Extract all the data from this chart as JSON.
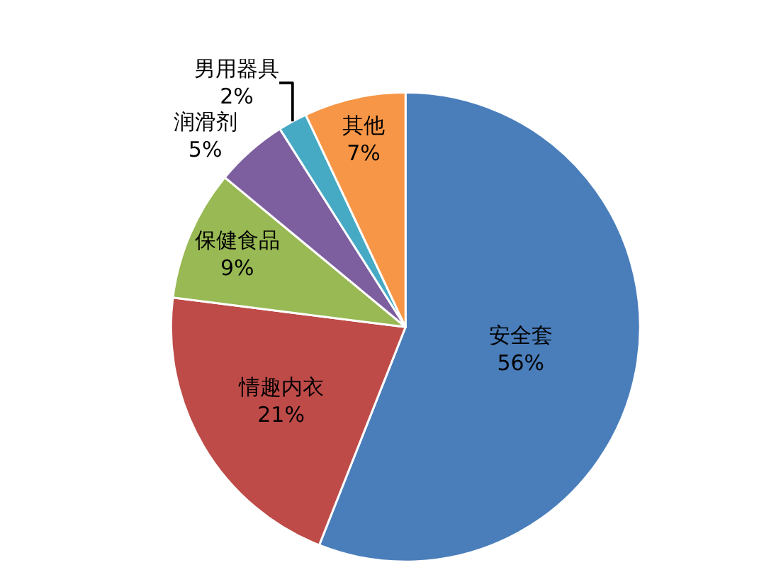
{
  "chart_data": {
    "type": "pie",
    "categories": [
      "安全套",
      "情趣内衣",
      "保健食品",
      "润滑剂",
      "男用器具",
      "其他"
    ],
    "values": [
      56,
      21,
      9,
      5,
      2,
      7
    ],
    "value_labels": [
      "56%",
      "21%",
      "9%",
      "5%",
      "2%",
      "7%"
    ],
    "colors": [
      "#4a7ebb",
      "#be4b48",
      "#98b954",
      "#7d5fa0",
      "#46aac5",
      "#f79646"
    ],
    "legend": false
  }
}
